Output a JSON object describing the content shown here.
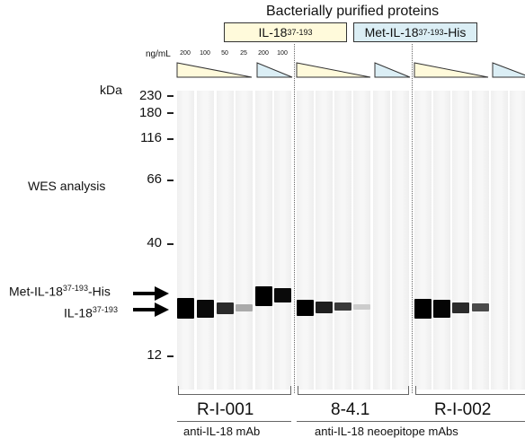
{
  "header": {
    "title": "Bacterially purified proteins",
    "il18_box_base": "IL-18",
    "il18_box_sup": "37-193",
    "met_box_pre": "Met-IL-18",
    "met_box_sup": "37-193",
    "met_box_post": "-His",
    "concentration_label": "ng/mL",
    "concentrations": [
      "200",
      "100",
      "50",
      "25",
      "200",
      "100"
    ]
  },
  "axis": {
    "unit_label": "kDa",
    "markers": [
      "230",
      "180",
      "116",
      "66",
      "40",
      "12"
    ]
  },
  "side_labels": {
    "analysis": "WES analysis",
    "upper_band_pre": "Met-IL-18",
    "upper_band_sup": "37-193",
    "upper_band_post": "-His",
    "lower_band_pre": "IL-18",
    "lower_band_sup": "37-193"
  },
  "antibodies": {
    "names": [
      "R-I-001",
      "8-4.1",
      "R-I-002"
    ],
    "group_left": "anti-IL-18 mAb",
    "group_right": "anti-IL-18 neoepitope mAbs"
  },
  "colors": {
    "il18_box": "#fffadb",
    "met_box": "#dbeef5",
    "band_dark": "#000000"
  }
}
